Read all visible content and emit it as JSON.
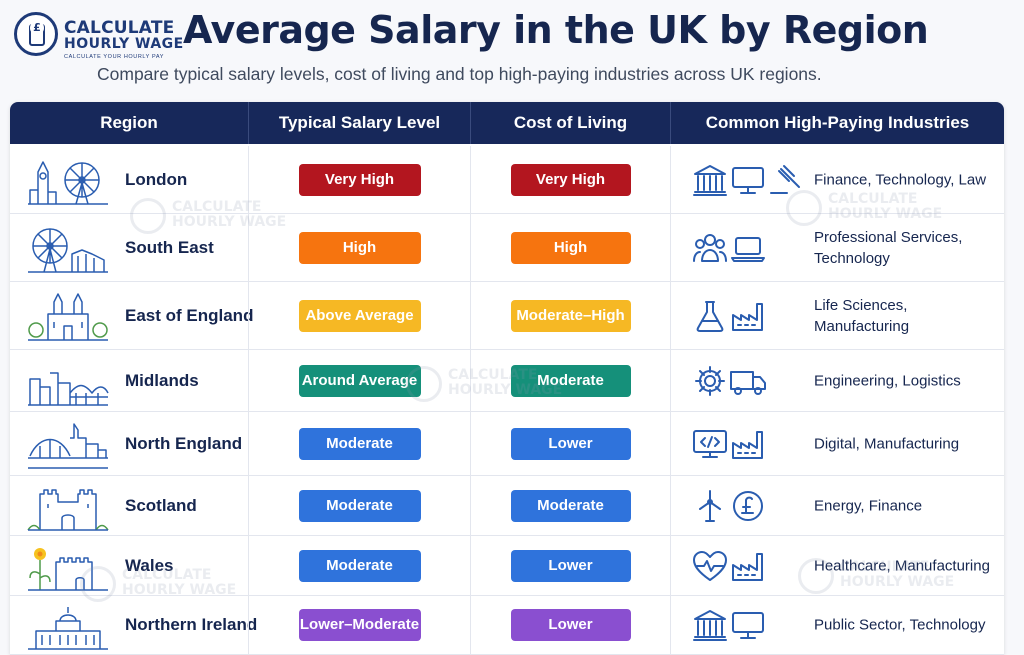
{
  "brand": {
    "line1": "CALCULATE",
    "line2": "HOURLY WAGE",
    "tagline": "CALCULATE YOUR HOURLY PAY",
    "symbol": "£"
  },
  "title": "Average Salary in the UK by Region",
  "subtitle": "Compare typical salary levels, cost of living and top high-paying industries across UK regions.",
  "columns": [
    "Region",
    "Typical Salary Level",
    "Cost of Living",
    "Common High-Paying Industries"
  ],
  "colors": {
    "header_bg": "#17285a",
    "very_high": "#b3161f",
    "high": "#f6740f",
    "above_average": "#f6b824",
    "around_average": "#15907a",
    "moderate": "#2f73dc",
    "lower": "#2f73dc",
    "lower_moderate": "#8a4fd0",
    "icon_blue": "#2a5db0"
  },
  "rows": [
    {
      "region": "London",
      "region_icon": "big-ben-london-eye-icon",
      "salary": "Very High",
      "salary_color": "#b3161f",
      "cost": "Very High",
      "cost_color": "#b3161f",
      "industries": "Finance, Technology, Law",
      "icons": [
        "bank-icon",
        "monitor-icon",
        "gavel-icon"
      ]
    },
    {
      "region": "South East",
      "region_icon": "ferris-wheel-cliffs-icon",
      "salary": "High",
      "salary_color": "#f6740f",
      "cost": "High",
      "cost_color": "#f6740f",
      "industries": "Professional Services, Technology",
      "icons": [
        "people-icon",
        "laptop-icon"
      ]
    },
    {
      "region": "East of England",
      "region_icon": "cathedral-icon",
      "salary": "Above Average",
      "salary_color": "#f6b824",
      "cost": "Moderate–High",
      "cost_color": "#f6b824",
      "industries": "Life Sciences, Manufacturing",
      "icons": [
        "flask-icon",
        "factory-icon"
      ]
    },
    {
      "region": "Midlands",
      "region_icon": "industrial-city-bridge-icon",
      "salary": "Around Average",
      "salary_color": "#15907a",
      "cost": "Moderate",
      "cost_color": "#15907a",
      "industries": "Engineering, Logistics",
      "icons": [
        "gear-icon",
        "truck-icon"
      ]
    },
    {
      "region": "North England",
      "region_icon": "tyne-bridge-skyline-icon",
      "salary": "Moderate",
      "salary_color": "#2f73dc",
      "cost": "Lower",
      "cost_color": "#2f73dc",
      "industries": "Digital, Manufacturing",
      "icons": [
        "code-monitor-icon",
        "factory-icon"
      ]
    },
    {
      "region": "Scotland",
      "region_icon": "castle-icon",
      "salary": "Moderate",
      "salary_color": "#2f73dc",
      "cost": "Moderate",
      "cost_color": "#2f73dc",
      "industries": "Energy, Finance",
      "icons": [
        "wind-turbine-icon",
        "pound-coin-icon"
      ]
    },
    {
      "region": "Wales",
      "region_icon": "daffodil-castle-icon",
      "salary": "Moderate",
      "salary_color": "#2f73dc",
      "cost": "Lower",
      "cost_color": "#2f73dc",
      "industries": "Healthcare, Manufacturing",
      "icons": [
        "heart-pulse-icon",
        "factory-icon"
      ]
    },
    {
      "region": "Northern Ireland",
      "region_icon": "parliament-building-icon",
      "salary": "Lower–Moderate",
      "salary_color": "#8a4fd0",
      "cost": "Lower",
      "cost_color": "#8a4fd0",
      "industries": "Public Sector, Technology",
      "icons": [
        "bank-icon",
        "monitor-icon"
      ]
    }
  ]
}
